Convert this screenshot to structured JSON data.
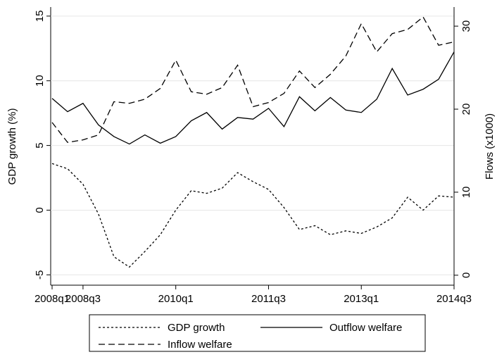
{
  "chart_data": {
    "type": "line",
    "x_categories_note_free": null,
    "categories": [
      "2008q1",
      null,
      "2008q3",
      null,
      null,
      null,
      null,
      null,
      "2010q1",
      null,
      null,
      null,
      null,
      null,
      "2011q3",
      null,
      null,
      null,
      null,
      null,
      "2013q1",
      null,
      null,
      null,
      null,
      null,
      "2014q3"
    ],
    "ylabel": "GDP growth (%)",
    "y2label": "Flows (x1000)",
    "ylim": [
      -5.8,
      15.7
    ],
    "yticks": [
      -5,
      0,
      5,
      10,
      15
    ],
    "y2lim": [
      -1.2,
      32.3
    ],
    "y2ticks": [
      0,
      10,
      20,
      30
    ],
    "grid": true,
    "legend": "bottom",
    "series": [
      {
        "name": "GDP growth",
        "color": "#000000",
        "dash": "dotted",
        "axis": "y",
        "values": [
          3.6,
          3.2,
          2.0,
          -0.3,
          -3.6,
          -4.4,
          -3.2,
          -1.9,
          0.0,
          1.5,
          1.3,
          1.7,
          2.9,
          2.2,
          1.6,
          0.2,
          -1.5,
          -1.2,
          -1.9,
          -1.6,
          -1.8,
          -1.3,
          -0.6,
          1.0,
          0.0,
          1.1,
          1.0
        ]
      },
      {
        "name": "Outflow welfare",
        "color": "#000000",
        "dash": "solid",
        "axis": "y2",
        "values": [
          21.3,
          19.7,
          20.7,
          18.1,
          16.7,
          15.8,
          16.9,
          15.9,
          16.7,
          18.6,
          19.6,
          17.6,
          19.0,
          18.8,
          20.1,
          17.9,
          21.5,
          19.8,
          21.4,
          19.9,
          19.6,
          21.2,
          24.9,
          21.7,
          22.4,
          23.6,
          26.9
        ]
      },
      {
        "name": "Inflow welfare",
        "color": "#000000",
        "dash": "dashed",
        "axis": "y2",
        "values": [
          18.4,
          16.0,
          16.3,
          16.9,
          20.9,
          20.7,
          21.2,
          22.5,
          25.9,
          22.1,
          21.8,
          22.6,
          25.3,
          20.3,
          20.8,
          21.9,
          24.6,
          22.6,
          24.2,
          26.4,
          30.3,
          26.9,
          29.1,
          29.6,
          31.1,
          27.7,
          28.1
        ]
      }
    ]
  }
}
